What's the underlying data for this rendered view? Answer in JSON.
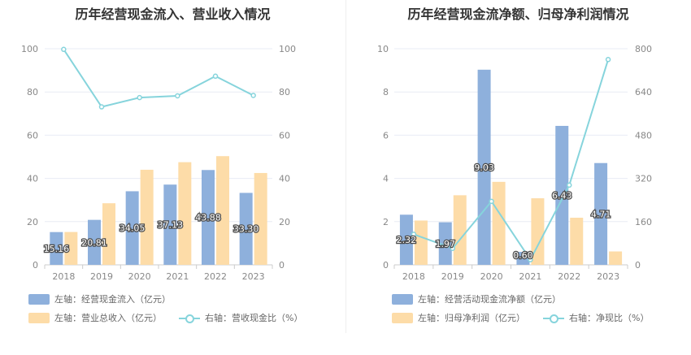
{
  "colors": {
    "primary": "#8eb0dc",
    "secondary": "#fddca8",
    "line": "#86d4dc"
  },
  "chart_data": [
    {
      "type": "bar+line",
      "title": "历年经营现金流入、营业收入情况",
      "categories": [
        "2018",
        "2019",
        "2020",
        "2021",
        "2022",
        "2023"
      ],
      "left_axis": {
        "min": 0,
        "max": 100,
        "ticks": [
          "0",
          "20",
          "40",
          "60",
          "80",
          "100"
        ]
      },
      "right_axis": {
        "min": 0,
        "max": 100,
        "ticks": [
          "0",
          "20",
          "40",
          "60",
          "80",
          "100"
        ]
      },
      "series": [
        {
          "name": "左轴：经营现金流入（亿元）",
          "type": "bar",
          "axis": "left",
          "values": [
            15.16,
            20.81,
            34.05,
            37.13,
            43.88,
            33.3
          ],
          "labels": [
            "15.16",
            "20.81",
            "34.05",
            "37.13",
            "43.88",
            "33.30"
          ]
        },
        {
          "name": "左轴：营业总收入（亿元）",
          "type": "bar",
          "axis": "left",
          "values": [
            15.2,
            28.5,
            44,
            47.5,
            50.3,
            42.5
          ]
        },
        {
          "name": "右轴：营收现金比（%）",
          "type": "line",
          "axis": "right",
          "values": [
            99.7,
            73.1,
            77.4,
            78.2,
            87.3,
            78.4
          ]
        }
      ]
    },
    {
      "type": "bar+line",
      "title": "历年经营现金流净额、归母净利润情况",
      "categories": [
        "2018",
        "2019",
        "2020",
        "2021",
        "2022",
        "2023"
      ],
      "left_axis": {
        "min": 0,
        "max": 10,
        "ticks": [
          "0",
          "2",
          "4",
          "6",
          "8",
          "10"
        ]
      },
      "right_axis": {
        "min": 0,
        "max": 800,
        "ticks": [
          "0",
          "160",
          "320",
          "480",
          "640",
          "800"
        ]
      },
      "series": [
        {
          "name": "左轴：经营活动现金流净额（亿元）",
          "type": "bar",
          "axis": "left",
          "values": [
            2.32,
            1.97,
            9.03,
            0.6,
            6.43,
            4.71
          ],
          "labels": [
            "2.32",
            "1.97",
            "9.03",
            "0.60",
            "6.43",
            "4.71"
          ]
        },
        {
          "name": "左轴：归母净利润（亿元）",
          "type": "bar",
          "axis": "left",
          "values": [
            2.05,
            3.22,
            3.84,
            3.08,
            2.18,
            0.62
          ]
        },
        {
          "name": "右轴：净现比（%）",
          "type": "line",
          "axis": "right",
          "values": [
            113,
            61,
            235,
            19,
            295,
            760
          ]
        }
      ]
    }
  ]
}
